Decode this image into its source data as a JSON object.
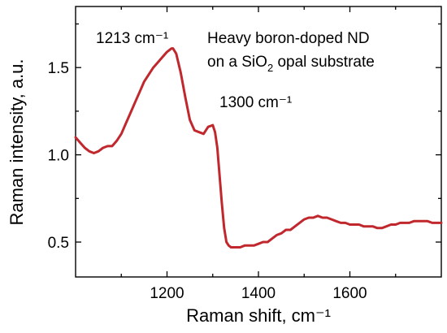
{
  "chart_data": {
    "type": "line",
    "xlabel": "Raman shift, cm⁻¹",
    "ylabel": "Raman intensity, a.u.",
    "xlim": [
      1000,
      1800
    ],
    "ylim": [
      0.3,
      1.85
    ],
    "xticks": [
      1200,
      1400,
      1600
    ],
    "yticks": [
      0.5,
      1.0,
      1.5
    ],
    "xtick_labels": [
      "1200",
      "1400",
      "1600"
    ],
    "ytick_labels": [
      "0.5",
      "1.0",
      "1.5"
    ],
    "grid": false,
    "legend": "none",
    "line_color": "#c0282d",
    "annotations": [
      {
        "text": "1213 cm⁻¹",
        "x": 1213,
        "y": 1.61
      },
      {
        "text": "1300 cm⁻¹",
        "x": 1300,
        "y": 1.17
      }
    ],
    "caption_lines": [
      "Heavy boron-doped ND",
      "on a SiO",
      "2",
      " opal substrate"
    ],
    "series": [
      {
        "x": [
          1000,
          1010,
          1020,
          1030,
          1040,
          1050,
          1060,
          1070,
          1080,
          1090,
          1100,
          1110,
          1120,
          1130,
          1140,
          1150,
          1160,
          1170,
          1180,
          1190,
          1200,
          1210,
          1213,
          1220,
          1230,
          1240,
          1250,
          1260,
          1270,
          1280,
          1290,
          1300,
          1305,
          1310,
          1315,
          1320,
          1325,
          1330,
          1335,
          1340,
          1345,
          1350,
          1360,
          1370,
          1380,
          1390,
          1400,
          1410,
          1420,
          1430,
          1440,
          1450,
          1460,
          1470,
          1480,
          1490,
          1500,
          1510,
          1520,
          1530,
          1540,
          1550,
          1560,
          1570,
          1580,
          1590,
          1600,
          1610,
          1620,
          1630,
          1640,
          1650,
          1660,
          1670,
          1680,
          1690,
          1700,
          1710,
          1720,
          1730,
          1740,
          1750,
          1760,
          1770,
          1780,
          1790,
          1800
        ],
        "y": [
          1.1,
          1.07,
          1.04,
          1.02,
          1.01,
          1.02,
          1.04,
          1.05,
          1.05,
          1.08,
          1.12,
          1.18,
          1.24,
          1.3,
          1.36,
          1.42,
          1.46,
          1.5,
          1.53,
          1.56,
          1.59,
          1.61,
          1.61,
          1.58,
          1.47,
          1.33,
          1.2,
          1.14,
          1.13,
          1.12,
          1.16,
          1.17,
          1.13,
          1.04,
          0.88,
          0.72,
          0.58,
          0.5,
          0.48,
          0.47,
          0.47,
          0.47,
          0.47,
          0.48,
          0.48,
          0.48,
          0.49,
          0.5,
          0.5,
          0.52,
          0.54,
          0.55,
          0.57,
          0.57,
          0.59,
          0.61,
          0.63,
          0.64,
          0.64,
          0.65,
          0.64,
          0.64,
          0.63,
          0.62,
          0.61,
          0.61,
          0.6,
          0.6,
          0.6,
          0.59,
          0.59,
          0.59,
          0.58,
          0.58,
          0.59,
          0.6,
          0.6,
          0.61,
          0.61,
          0.61,
          0.62,
          0.62,
          0.62,
          0.62,
          0.61,
          0.61,
          0.61
        ]
      }
    ]
  }
}
